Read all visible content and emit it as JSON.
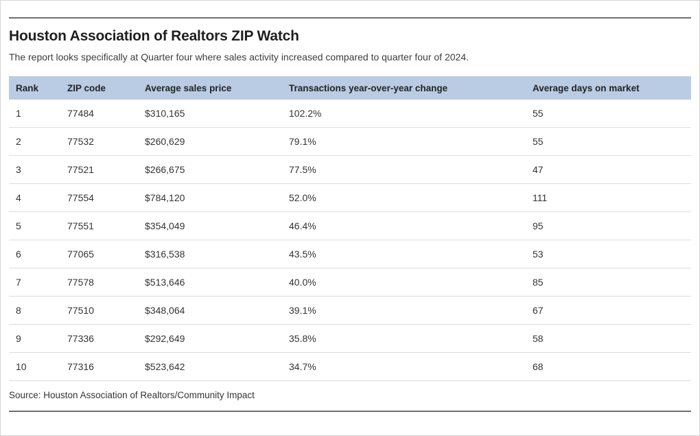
{
  "page": {
    "title": "Houston Association of Realtors ZIP Watch",
    "subtitle": "The report looks specifically at Quarter four where sales activity increased compared to quarter four of 2024.",
    "source": "Source: Houston Association of Realtors/Community Impact"
  },
  "chart_data": {
    "type": "table",
    "title": "Houston Association of Realtors ZIP Watch",
    "subtitle": "The report looks specifically at Quarter four where sales activity increased compared to quarter four of 2024.",
    "columns": [
      "Rank",
      "ZIP code",
      "Average sales price",
      "Transactions year-over-year change",
      "Average days on market"
    ],
    "rows": [
      [
        "1",
        "77484",
        "$310,165",
        "102.2%",
        "55"
      ],
      [
        "2",
        "77532",
        "$260,629",
        "79.1%",
        "55"
      ],
      [
        "3",
        "77521",
        "$266,675",
        "77.5%",
        "47"
      ],
      [
        "4",
        "77554",
        "$784,120",
        "52.0%",
        "111"
      ],
      [
        "5",
        "77551",
        "$354,049",
        "46.4%",
        "95"
      ],
      [
        "6",
        "77065",
        "$316,538",
        "43.5%",
        "53"
      ],
      [
        "7",
        "77578",
        "$513,646",
        "40.0%",
        "85"
      ],
      [
        "8",
        "77510",
        "$348,064",
        "39.1%",
        "67"
      ],
      [
        "9",
        "77336",
        "$292,649",
        "35.8%",
        "58"
      ],
      [
        "10",
        "77316",
        "$523,642",
        "34.7%",
        "68"
      ]
    ],
    "source": "Source: Houston Association of Realtors/Community Impact"
  },
  "colors": {
    "header_row_bg": "#b9cce3",
    "rule": "#6f6f6f",
    "row_divider": "#dddddd",
    "body_text": "#333333",
    "title_text": "#1f1f1f",
    "outer_border": "#d6d6d6"
  }
}
